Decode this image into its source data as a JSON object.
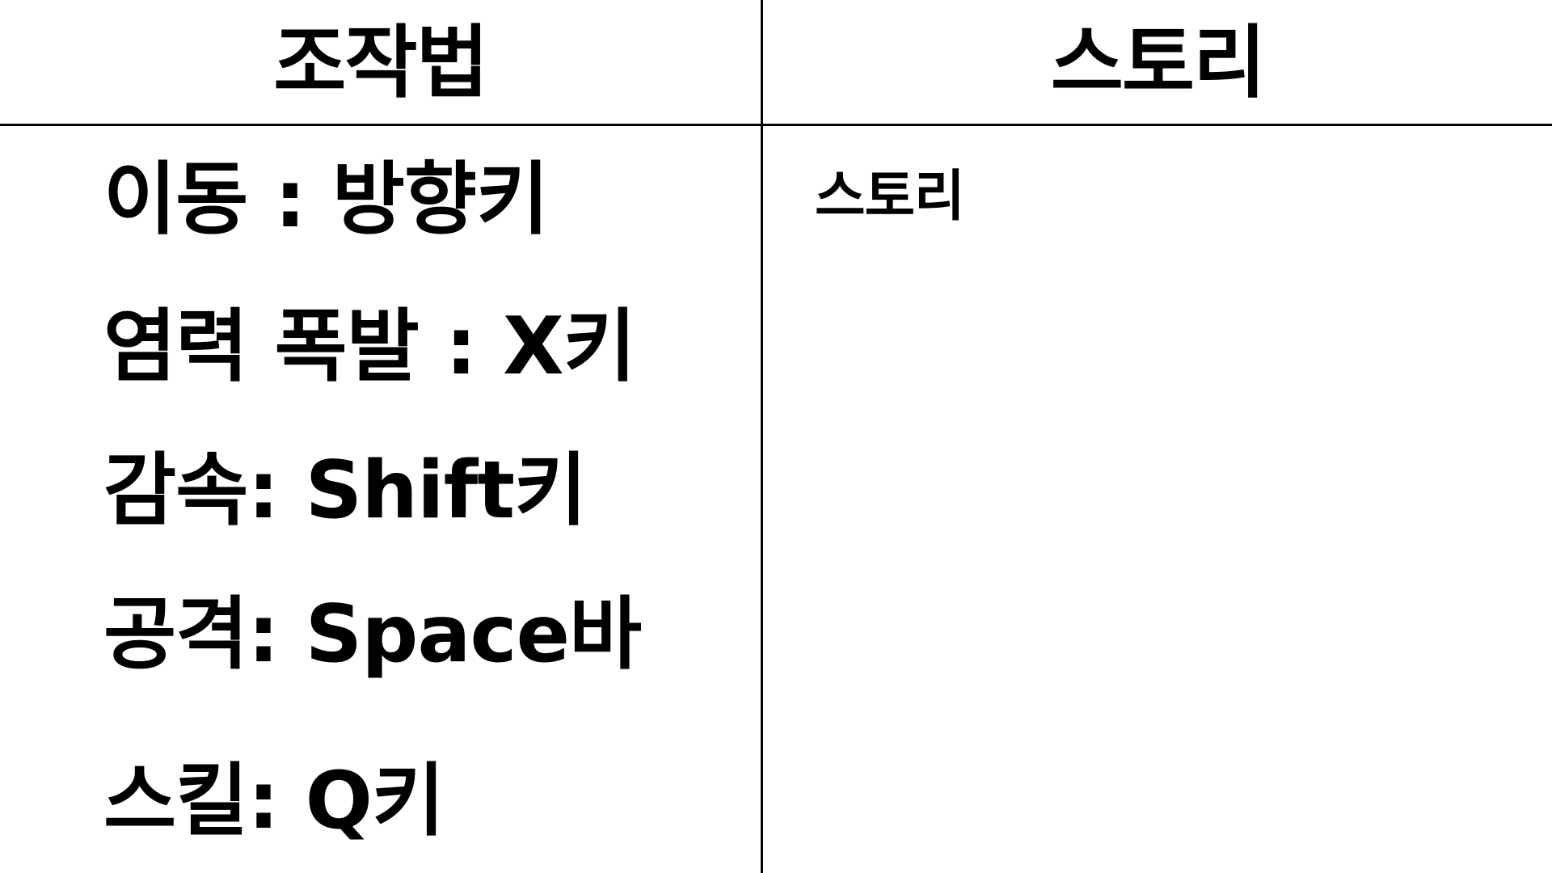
{
  "headers": {
    "controls": "조작법",
    "story": "스토리"
  },
  "controls": [
    "이동 : 방향키",
    "염력 폭발 : X키",
    "감속: Shift키",
    "공격: Space바",
    "스킬: Q키"
  ],
  "story": {
    "text": "스토리"
  }
}
